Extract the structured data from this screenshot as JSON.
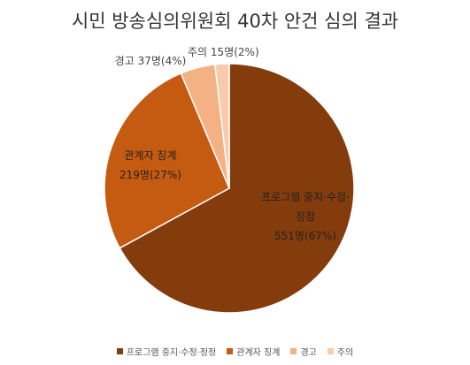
{
  "chart_data": {
    "type": "pie",
    "title": "시민 방송심의위원회 40차 안건 심의 결과",
    "categories": [
      "프로그램 중지·수정·정정",
      "관계자 징계",
      "경고",
      "주의"
    ],
    "values": [
      551,
      219,
      37,
      15
    ],
    "value_labels": [
      "551명(67%)",
      "219명(27%)",
      "37명(4%)",
      "15명(2%)"
    ],
    "colors": [
      "#843c0c",
      "#c55a11",
      "#f4b183",
      "#f8cbad"
    ],
    "legend": "bottom"
  }
}
